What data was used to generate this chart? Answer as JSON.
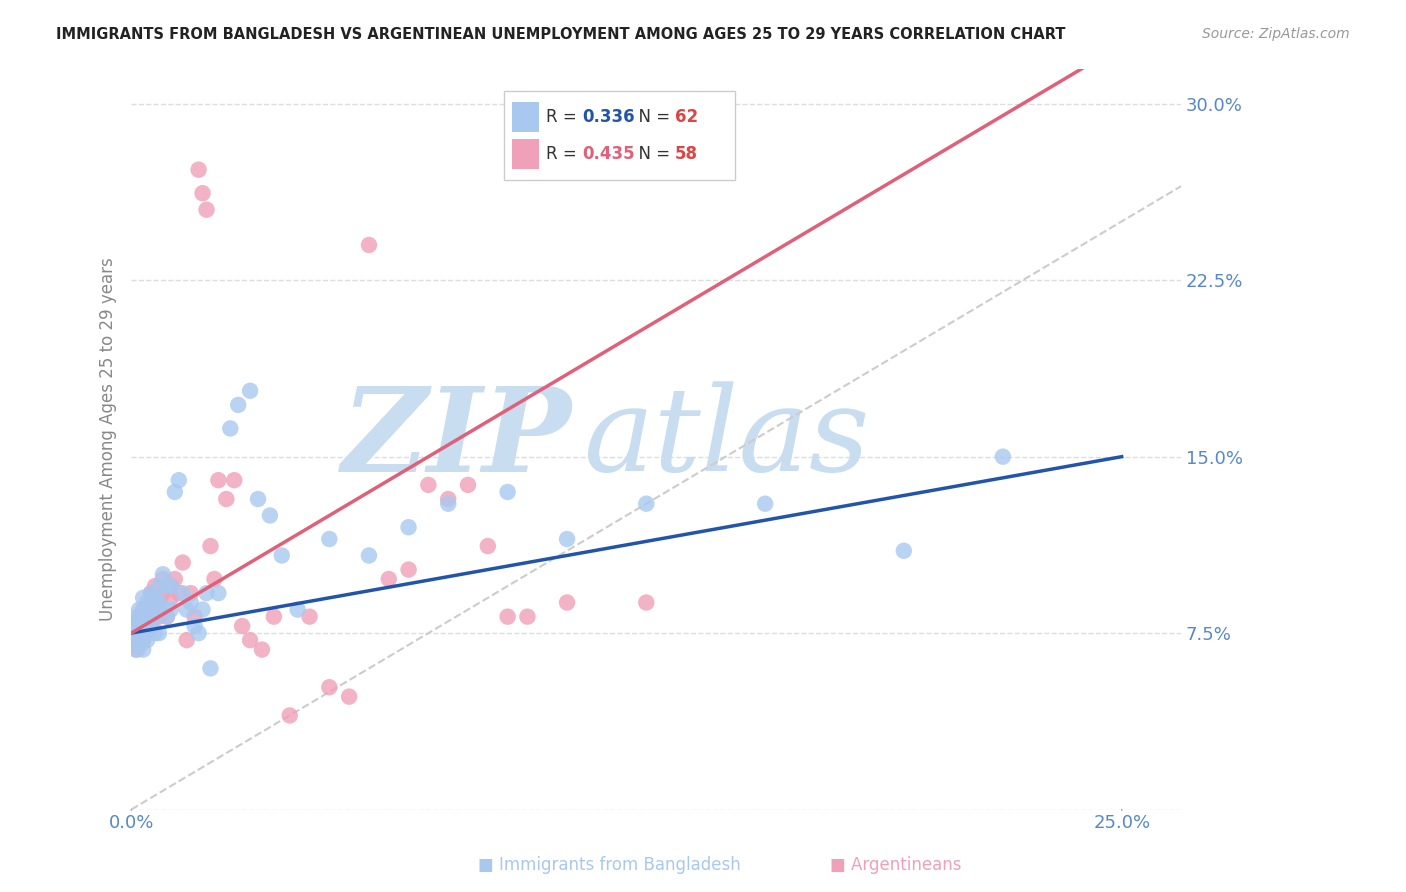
{
  "title": "IMMIGRANTS FROM BANGLADESH VS ARGENTINEAN UNEMPLOYMENT AMONG AGES 25 TO 29 YEARS CORRELATION CHART",
  "source": "Source: ZipAtlas.com",
  "ylabel": "Unemployment Among Ages 25 to 29 years",
  "xlim": [
    0.0,
    0.265
  ],
  "ylim": [
    0.0,
    0.315
  ],
  "y_ticks": [
    0.0,
    0.075,
    0.15,
    0.225,
    0.3
  ],
  "y_tick_labels": [
    "",
    "7.5%",
    "15.0%",
    "22.5%",
    "30.0%"
  ],
  "x_ticks": [
    0.0,
    0.05,
    0.1,
    0.15,
    0.2,
    0.25
  ],
  "x_tick_labels": [
    "0.0%",
    "",
    "",
    "",
    "",
    "25.0%"
  ],
  "series_bangladesh": {
    "color": "#a8c8f0",
    "trend_color": "#2255aa",
    "trend_intercept": 0.075,
    "trend_slope": 0.3
  },
  "series_argentina": {
    "color": "#f0a0b8",
    "trend_color": "#e0607a",
    "trend_intercept": 0.075,
    "trend_slope": 1.0
  },
  "diagonal_line": {
    "color": "#cccccc",
    "style": "--"
  },
  "scatter_bangladesh_x": [
    0.0005,
    0.0008,
    0.001,
    0.001,
    0.0015,
    0.0015,
    0.002,
    0.002,
    0.002,
    0.002,
    0.003,
    0.003,
    0.003,
    0.003,
    0.003,
    0.004,
    0.004,
    0.004,
    0.004,
    0.005,
    0.005,
    0.005,
    0.006,
    0.006,
    0.006,
    0.007,
    0.007,
    0.007,
    0.008,
    0.008,
    0.009,
    0.009,
    0.01,
    0.01,
    0.011,
    0.012,
    0.013,
    0.014,
    0.015,
    0.016,
    0.017,
    0.018,
    0.019,
    0.02,
    0.022,
    0.025,
    0.027,
    0.03,
    0.032,
    0.035,
    0.038,
    0.042,
    0.05,
    0.06,
    0.07,
    0.08,
    0.095,
    0.11,
    0.13,
    0.16,
    0.195,
    0.22
  ],
  "scatter_bangladesh_y": [
    0.076,
    0.072,
    0.08,
    0.068,
    0.075,
    0.082,
    0.078,
    0.07,
    0.085,
    0.072,
    0.076,
    0.082,
    0.09,
    0.074,
    0.068,
    0.08,
    0.088,
    0.076,
    0.072,
    0.085,
    0.078,
    0.092,
    0.082,
    0.09,
    0.075,
    0.088,
    0.095,
    0.075,
    0.1,
    0.085,
    0.095,
    0.082,
    0.095,
    0.085,
    0.135,
    0.14,
    0.092,
    0.085,
    0.088,
    0.078,
    0.075,
    0.085,
    0.092,
    0.06,
    0.092,
    0.162,
    0.172,
    0.178,
    0.132,
    0.125,
    0.108,
    0.085,
    0.115,
    0.108,
    0.12,
    0.13,
    0.135,
    0.115,
    0.13,
    0.13,
    0.11,
    0.15
  ],
  "scatter_argentina_x": [
    0.0005,
    0.0008,
    0.001,
    0.001,
    0.0015,
    0.0015,
    0.002,
    0.002,
    0.003,
    0.003,
    0.003,
    0.004,
    0.004,
    0.005,
    0.005,
    0.005,
    0.006,
    0.006,
    0.007,
    0.007,
    0.008,
    0.008,
    0.009,
    0.01,
    0.01,
    0.011,
    0.012,
    0.013,
    0.014,
    0.015,
    0.016,
    0.017,
    0.018,
    0.019,
    0.02,
    0.021,
    0.022,
    0.024,
    0.026,
    0.028,
    0.03,
    0.033,
    0.036,
    0.04,
    0.045,
    0.05,
    0.055,
    0.06,
    0.065,
    0.07,
    0.075,
    0.08,
    0.085,
    0.09,
    0.095,
    0.1,
    0.11,
    0.13
  ],
  "scatter_argentina_y": [
    0.075,
    0.07,
    0.078,
    0.072,
    0.08,
    0.068,
    0.075,
    0.082,
    0.085,
    0.078,
    0.072,
    0.082,
    0.076,
    0.088,
    0.092,
    0.078,
    0.095,
    0.082,
    0.088,
    0.082,
    0.098,
    0.092,
    0.082,
    0.09,
    0.095,
    0.098,
    0.092,
    0.105,
    0.072,
    0.092,
    0.082,
    0.272,
    0.262,
    0.255,
    0.112,
    0.098,
    0.14,
    0.132,
    0.14,
    0.078,
    0.072,
    0.068,
    0.082,
    0.04,
    0.082,
    0.052,
    0.048,
    0.24,
    0.098,
    0.102,
    0.138,
    0.132,
    0.138,
    0.112,
    0.082,
    0.082,
    0.088,
    0.088
  ],
  "background_color": "#ffffff",
  "grid_color": "#dddddd",
  "title_color": "#222222",
  "axis_label_color": "#888888",
  "tick_label_color": "#5588cc",
  "watermark_zip_color": "#c8ddf0",
  "watermark_atlas_color": "#c8ddf0",
  "watermark_fontsize": 85,
  "legend_R_color": "#2255aa",
  "legend_N_color": "#dd4444",
  "legend_R2_color": "#e0607a",
  "legend_N2_color": "#dd4444"
}
